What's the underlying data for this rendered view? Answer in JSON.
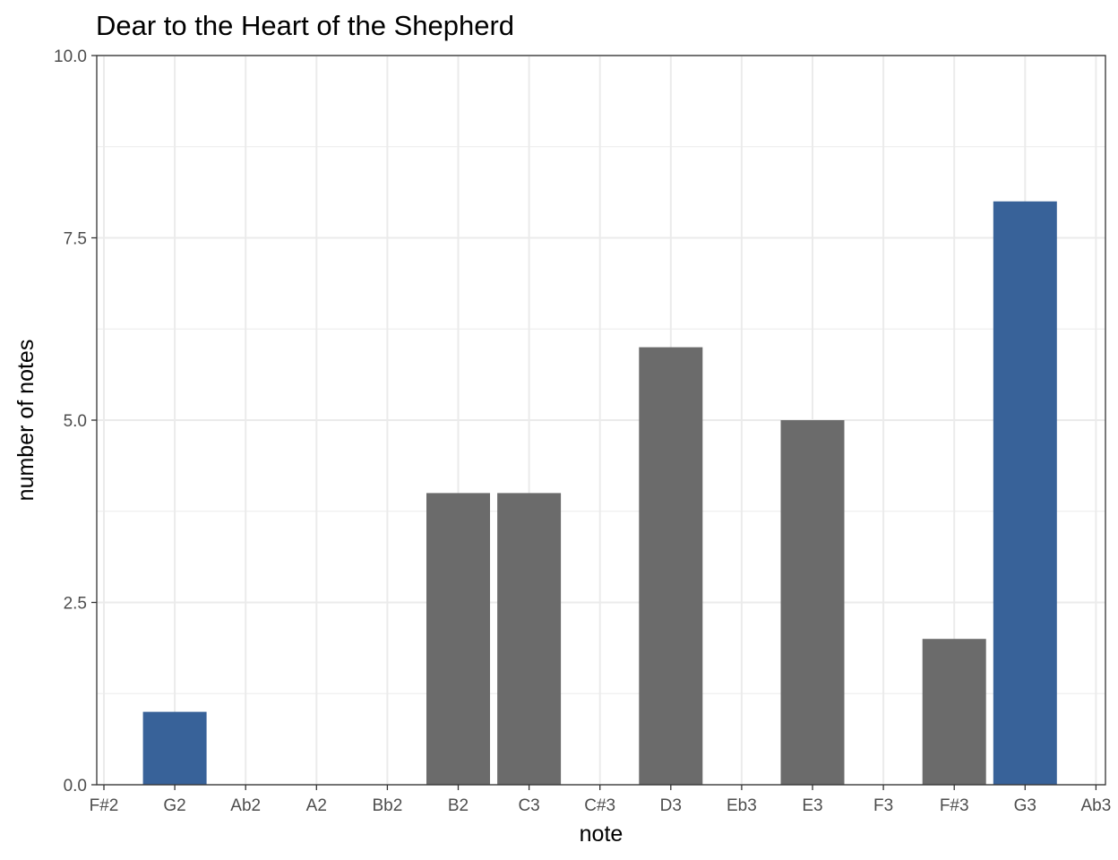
{
  "chart_data": {
    "type": "bar",
    "title": "Dear to the Heart of the Shepherd",
    "xlabel": "note",
    "ylabel": "number of notes",
    "categories": [
      "F#2",
      "G2",
      "Ab2",
      "A2",
      "Bb2",
      "B2",
      "C3",
      "C#3",
      "D3",
      "Eb3",
      "E3",
      "F3",
      "F#3",
      "G3",
      "Ab3"
    ],
    "values": [
      0,
      1,
      0,
      0,
      0,
      4,
      4,
      0,
      6,
      0,
      5,
      0,
      2,
      8,
      0
    ],
    "bar_colors": [
      "#6b6b6b",
      "#386299",
      "#6b6b6b",
      "#6b6b6b",
      "#6b6b6b",
      "#6b6b6b",
      "#6b6b6b",
      "#6b6b6b",
      "#6b6b6b",
      "#6b6b6b",
      "#6b6b6b",
      "#6b6b6b",
      "#6b6b6b",
      "#386299",
      "#6b6b6b"
    ],
    "ylim": [
      0,
      10
    ],
    "yticks": [
      "0.0",
      "2.5",
      "5.0",
      "7.5",
      "10.0"
    ],
    "ytick_values": [
      0,
      2.5,
      5,
      7.5,
      10
    ],
    "grid": true,
    "legend": "none"
  }
}
